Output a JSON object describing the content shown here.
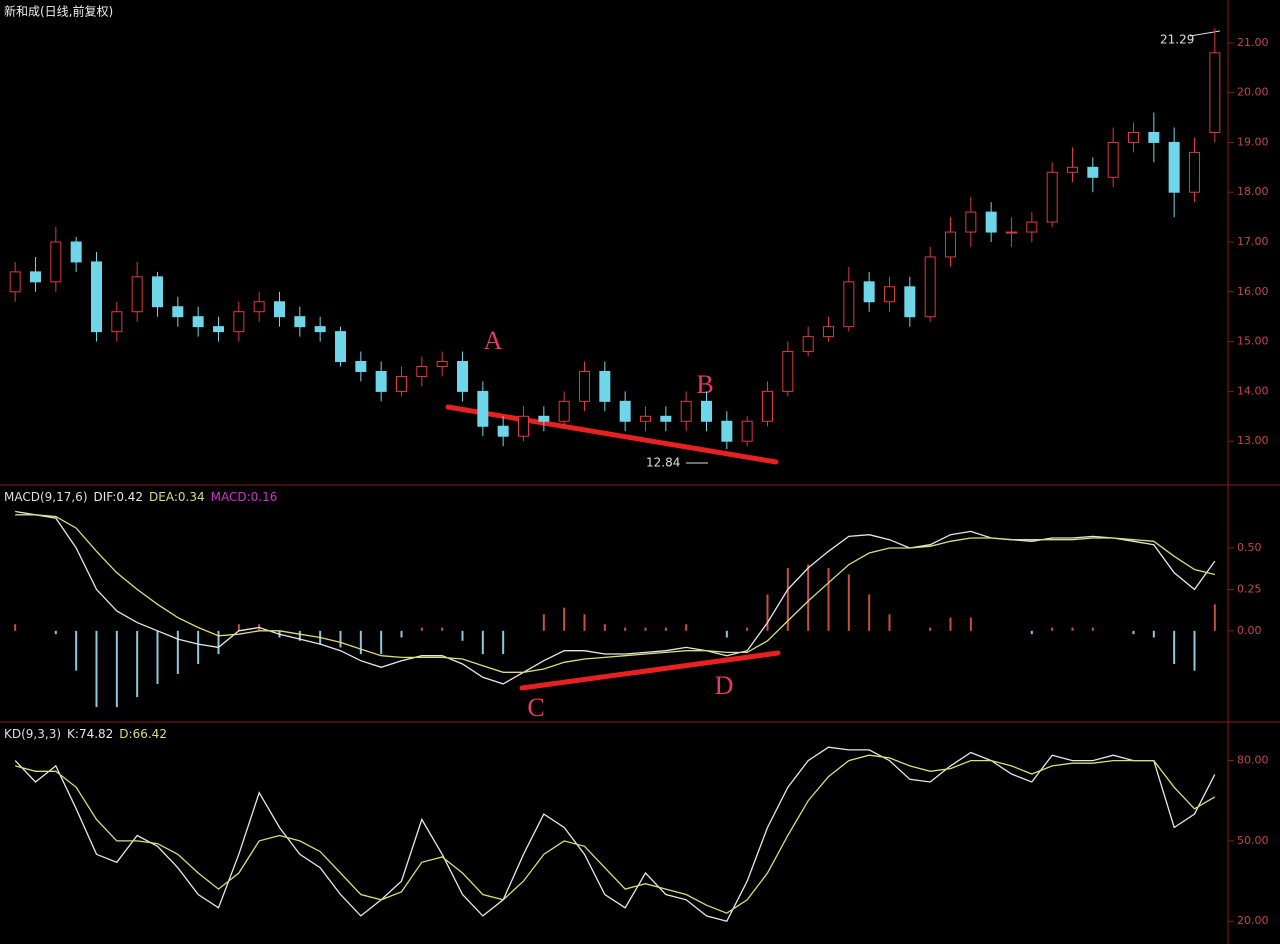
{
  "chart_data": [
    {
      "type": "candlestick",
      "title": "新和成(日线,前复权)",
      "open": [
        16.0,
        16.4,
        16.2,
        17.0,
        16.6,
        15.2,
        15.6,
        16.3,
        15.7,
        15.5,
        15.3,
        15.2,
        15.6,
        15.8,
        15.5,
        15.3,
        15.2,
        14.6,
        14.4,
        14.0,
        14.3,
        14.5,
        14.6,
        14.0,
        13.3,
        13.1,
        13.5,
        13.4,
        13.8,
        14.4,
        13.8,
        13.4,
        13.5,
        13.4,
        13.8,
        13.4,
        13.0,
        13.4,
        14.0,
        14.8,
        15.1,
        15.3,
        16.2,
        15.8,
        16.1,
        15.5,
        16.7,
        17.2,
        17.6,
        17.2,
        17.2,
        17.4,
        18.4,
        18.5,
        18.3,
        19.0,
        19.2,
        19.0,
        18.0,
        19.2
      ],
      "high": [
        16.6,
        16.7,
        17.3,
        17.1,
        16.8,
        15.8,
        16.6,
        16.4,
        15.9,
        15.7,
        15.5,
        15.8,
        16.0,
        16.0,
        15.7,
        15.5,
        15.3,
        14.8,
        14.6,
        14.5,
        14.7,
        14.8,
        14.8,
        14.2,
        13.5,
        13.7,
        13.7,
        14.0,
        14.6,
        14.6,
        14.0,
        13.7,
        13.7,
        14.0,
        14.0,
        13.6,
        13.5,
        14.2,
        15.0,
        15.3,
        15.5,
        16.5,
        16.4,
        16.3,
        16.3,
        16.9,
        17.5,
        17.9,
        17.8,
        17.5,
        17.6,
        18.6,
        18.9,
        18.7,
        19.3,
        19.4,
        19.6,
        19.3,
        19.1,
        21.29
      ],
      "low": [
        15.8,
        16.0,
        16.0,
        16.4,
        15.0,
        15.0,
        15.4,
        15.5,
        15.3,
        15.1,
        15.0,
        15.0,
        15.4,
        15.3,
        15.1,
        15.0,
        14.5,
        14.2,
        13.8,
        13.9,
        14.1,
        14.3,
        13.8,
        13.1,
        12.9,
        13.0,
        13.2,
        13.3,
        13.6,
        13.6,
        13.2,
        13.2,
        13.2,
        13.2,
        13.2,
        12.84,
        12.9,
        13.3,
        13.9,
        14.7,
        15.0,
        15.2,
        15.6,
        15.6,
        15.3,
        15.4,
        16.5,
        16.9,
        17.0,
        16.9,
        17.0,
        17.3,
        18.2,
        18.0,
        18.1,
        18.8,
        18.6,
        17.5,
        17.8,
        19.0
      ],
      "close": [
        16.4,
        16.2,
        17.0,
        16.6,
        15.2,
        15.6,
        16.3,
        15.7,
        15.5,
        15.3,
        15.2,
        15.6,
        15.8,
        15.5,
        15.3,
        15.2,
        14.6,
        14.4,
        14.0,
        14.3,
        14.5,
        14.6,
        14.0,
        13.3,
        13.1,
        13.5,
        13.4,
        13.8,
        14.4,
        13.8,
        13.4,
        13.5,
        13.4,
        13.8,
        13.4,
        13.0,
        13.4,
        14.0,
        14.8,
        15.1,
        15.3,
        16.2,
        15.8,
        16.1,
        15.5,
        16.7,
        17.2,
        17.6,
        17.2,
        17.2,
        17.4,
        18.4,
        18.5,
        18.3,
        19.0,
        19.2,
        19.0,
        18.0,
        18.8,
        20.8
      ],
      "up_color": "#e0383c",
      "down_color": "#6fd6ea",
      "ylim": [
        12.12,
        21.86
      ],
      "yticks": [
        {
          "value": 13,
          "label": "13.00"
        },
        {
          "value": 14,
          "label": "14.00"
        },
        {
          "value": 15,
          "label": "15.00"
        },
        {
          "value": 16,
          "label": "16.00"
        },
        {
          "value": 17,
          "label": "17.00"
        },
        {
          "value": 18,
          "label": "18.00"
        },
        {
          "value": 19,
          "label": "19.00"
        },
        {
          "value": 20,
          "label": "20.00"
        },
        {
          "value": 21,
          "label": "21.00"
        }
      ],
      "annotations": [
        "A",
        "B"
      ]
    },
    {
      "type": "macd",
      "title": "MACD(9,17,6)",
      "series": [
        {
          "name": "DIF:",
          "color": "#e6e6e6",
          "values": [
            0.72,
            0.7,
            0.68,
            0.5,
            0.25,
            0.12,
            0.05,
            0.0,
            -0.05,
            -0.08,
            -0.1,
            0.0,
            0.02,
            -0.02,
            -0.05,
            -0.08,
            -0.12,
            -0.18,
            -0.22,
            -0.18,
            -0.15,
            -0.15,
            -0.2,
            -0.28,
            -0.32,
            -0.25,
            -0.18,
            -0.12,
            -0.12,
            -0.14,
            -0.14,
            -0.13,
            -0.12,
            -0.1,
            -0.12,
            -0.15,
            -0.12,
            0.05,
            0.25,
            0.38,
            0.48,
            0.57,
            0.58,
            0.55,
            0.5,
            0.52,
            0.58,
            0.6,
            0.56,
            0.55,
            0.54,
            0.56,
            0.56,
            0.57,
            0.56,
            0.54,
            0.52,
            0.35,
            0.25,
            0.42
          ]
        },
        {
          "name": "DEA:",
          "color": "#dcdc78",
          "values": [
            0.7,
            0.7,
            0.69,
            0.62,
            0.48,
            0.35,
            0.25,
            0.16,
            0.08,
            0.02,
            -0.03,
            -0.02,
            0.0,
            0.0,
            -0.02,
            -0.04,
            -0.07,
            -0.11,
            -0.15,
            -0.16,
            -0.16,
            -0.16,
            -0.17,
            -0.21,
            -0.25,
            -0.25,
            -0.23,
            -0.19,
            -0.17,
            -0.16,
            -0.15,
            -0.14,
            -0.13,
            -0.12,
            -0.12,
            -0.13,
            -0.13,
            -0.06,
            0.06,
            0.18,
            0.29,
            0.4,
            0.47,
            0.5,
            0.5,
            0.51,
            0.54,
            0.56,
            0.56,
            0.55,
            0.55,
            0.55,
            0.55,
            0.56,
            0.56,
            0.55,
            0.54,
            0.45,
            0.37,
            0.34
          ]
        },
        {
          "name": "MACD:",
          "color": "#d030d0",
          "values": [
            0.04,
            0,
            -0.02,
            -0.24,
            -0.46,
            -0.46,
            -0.4,
            -0.32,
            -0.26,
            -0.2,
            -0.14,
            0.04,
            0.04,
            -0.04,
            -0.06,
            -0.08,
            -0.1,
            -0.14,
            -0.14,
            -0.04,
            0.02,
            0.02,
            -0.06,
            -0.14,
            -0.14,
            0,
            0.1,
            0.14,
            0.1,
            0.04,
            0.02,
            0.02,
            0.02,
            0.04,
            0,
            -0.04,
            0.02,
            0.22,
            0.38,
            0.4,
            0.38,
            0.34,
            0.22,
            0.1,
            0,
            0.02,
            0.08,
            0.08,
            0,
            0,
            -0.02,
            0.02,
            0.02,
            0.02,
            0,
            -0.02,
            -0.04,
            -0.2,
            -0.24,
            0.16
          ]
        }
      ],
      "up_color": "#c8503c",
      "down_color": "#8ec8dc",
      "ylim": [
        -0.55,
        0.88
      ],
      "yticks": [
        {
          "value": 0,
          "label": "0.00"
        },
        {
          "value": 0.25,
          "label": "0.25"
        },
        {
          "value": 0.5,
          "label": "0.50"
        }
      ],
      "annotations": [
        "C",
        "D"
      ]
    },
    {
      "type": "kd",
      "title": "KD(9,3,3)",
      "series": [
        {
          "name": "K:",
          "color": "#e6e6e6",
          "values": [
            80,
            72,
            78,
            62,
            45,
            42,
            52,
            48,
            40,
            30,
            25,
            45,
            68,
            55,
            45,
            40,
            30,
            22,
            28,
            35,
            58,
            45,
            30,
            22,
            28,
            45,
            60,
            55,
            45,
            30,
            25,
            38,
            30,
            28,
            22,
            20,
            35,
            55,
            70,
            80,
            85,
            84,
            84,
            80,
            73,
            72,
            78,
            83,
            80,
            75,
            72,
            82,
            80,
            80,
            82,
            80,
            80,
            55,
            60,
            74.82
          ]
        },
        {
          "name": "D:",
          "color": "#dcdc78",
          "values": [
            78,
            76,
            76,
            70,
            58,
            50,
            50,
            49,
            45,
            38,
            32,
            38,
            50,
            52,
            50,
            46,
            38,
            30,
            28,
            31,
            42,
            44,
            38,
            30,
            28,
            35,
            45,
            50,
            48,
            40,
            32,
            34,
            32,
            30,
            26,
            23,
            28,
            38,
            52,
            65,
            74,
            80,
            82,
            81,
            78,
            76,
            77,
            80,
            80,
            78,
            75,
            78,
            79,
            79,
            80,
            80,
            80,
            70,
            62,
            66.42
          ]
        }
      ],
      "ylim": [
        11.5,
        94.4
      ],
      "yticks": [
        {
          "value": 20,
          "label": "20.00"
        },
        {
          "value": 50,
          "label": "50.00"
        },
        {
          "value": 80,
          "label": "80.00"
        }
      ]
    }
  ]
}
